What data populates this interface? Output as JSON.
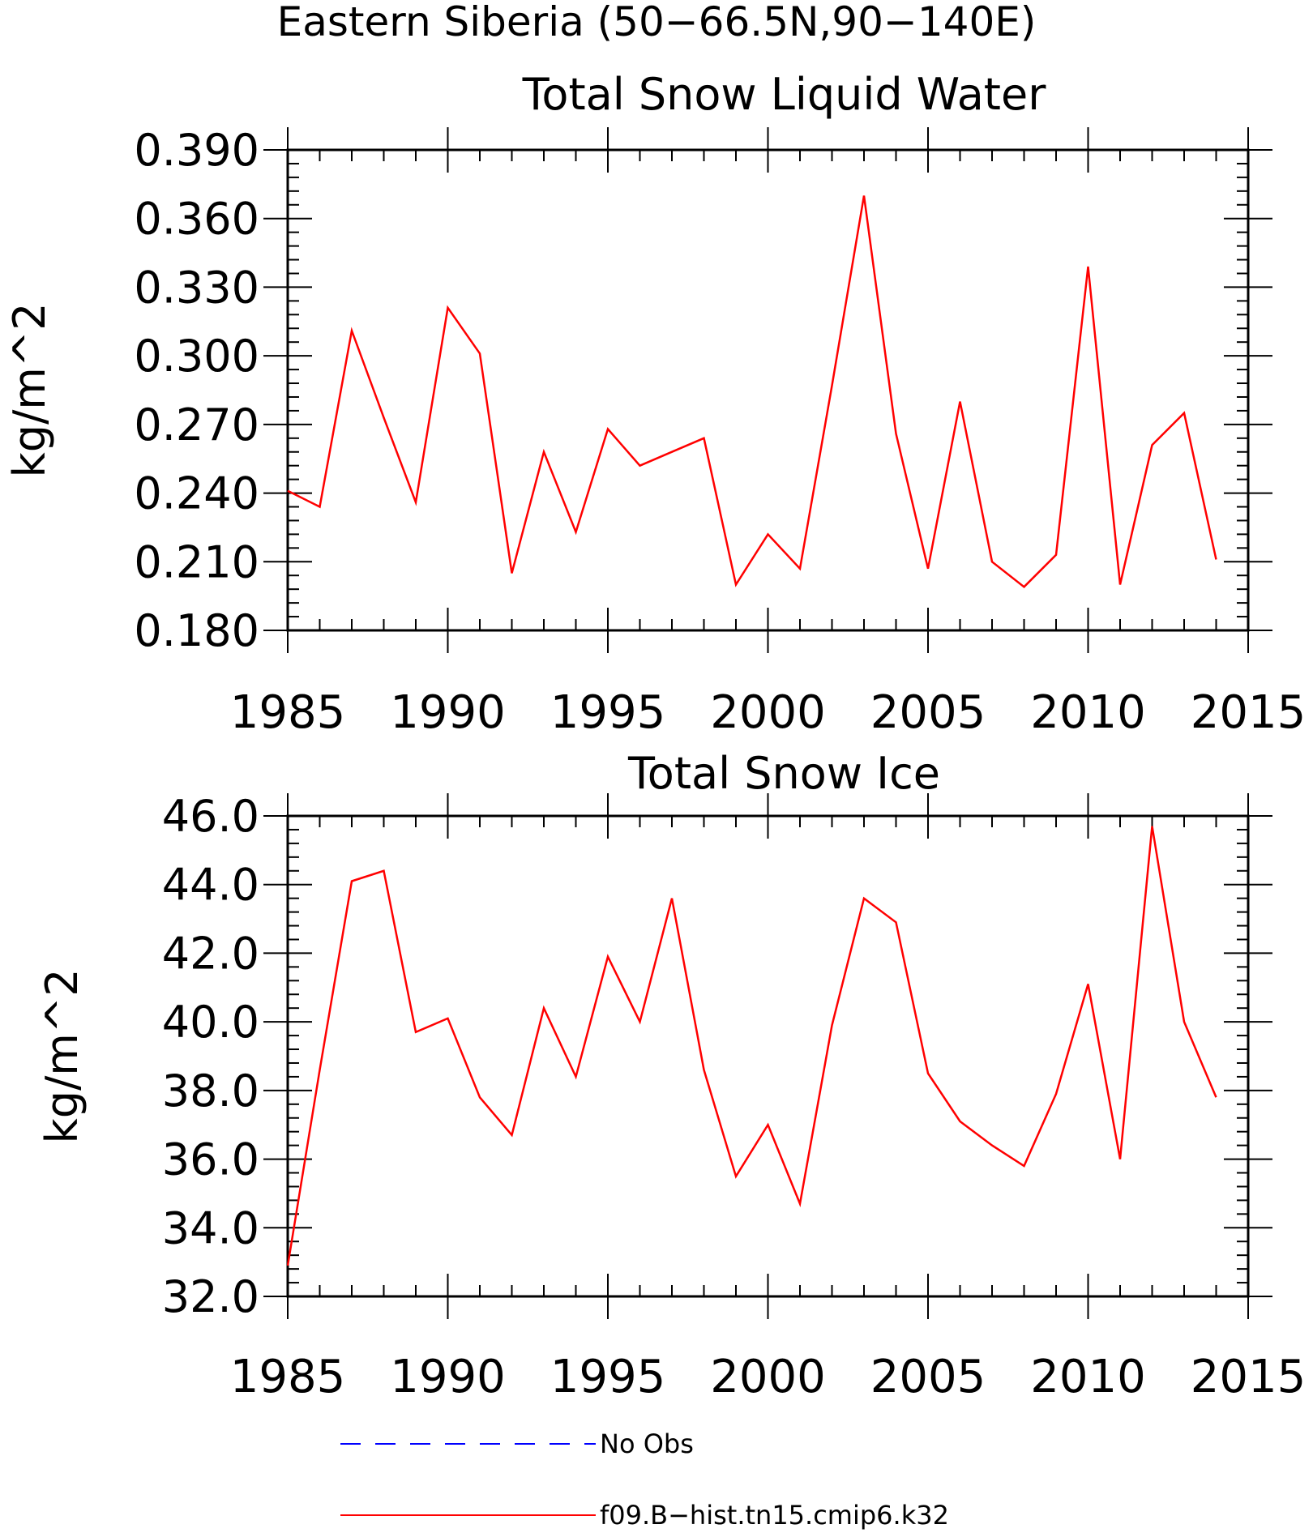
{
  "figure": {
    "title": "Eastern Siberia (50−66.5N,90−140E)"
  },
  "chart_data": [
    {
      "type": "line",
      "title": "Total Snow Liquid Water",
      "xlabel": "",
      "ylabel": "kg/m^2",
      "xlim": [
        1985,
        2015
      ],
      "ylim": [
        0.18,
        0.39
      ],
      "x_ticks": [
        "1985",
        "1990",
        "1995",
        "2000",
        "2005",
        "2010",
        "2015"
      ],
      "y_ticks": [
        "0.180",
        "0.210",
        "0.240",
        "0.270",
        "0.300",
        "0.330",
        "0.360",
        "0.390"
      ],
      "grid": false,
      "x": [
        1985,
        1986,
        1987,
        1988,
        1989,
        1990,
        1991,
        1992,
        1993,
        1994,
        1995,
        1996,
        1997,
        1998,
        1999,
        2000,
        2001,
        2002,
        2003,
        2004,
        2005,
        2006,
        2007,
        2008,
        2009,
        2010,
        2011,
        2012,
        2013,
        2014
      ],
      "series": [
        {
          "name": "f09.B−hist.tn15.cmip6.k32",
          "color": "#ff0000",
          "values": [
            0.241,
            0.234,
            0.311,
            0.273,
            0.236,
            0.321,
            0.301,
            0.205,
            0.258,
            0.223,
            0.268,
            0.252,
            0.258,
            0.264,
            0.2,
            0.222,
            0.207,
            0.287,
            0.37,
            0.266,
            0.207,
            0.28,
            0.21,
            0.199,
            0.213,
            0.339,
            0.2,
            0.261,
            0.275,
            0.211
          ]
        }
      ]
    },
    {
      "type": "line",
      "title": "Total Snow Ice",
      "xlabel": "",
      "ylabel": "kg/m^2",
      "xlim": [
        1985,
        2015
      ],
      "ylim": [
        32.0,
        46.0
      ],
      "x_ticks": [
        "1985",
        "1990",
        "1995",
        "2000",
        "2005",
        "2010",
        "2015"
      ],
      "y_ticks": [
        "32.0",
        "34.0",
        "36.0",
        "38.0",
        "40.0",
        "42.0",
        "44.0",
        "46.0"
      ],
      "grid": false,
      "x": [
        1985,
        1986,
        1987,
        1988,
        1989,
        1990,
        1991,
        1992,
        1993,
        1994,
        1995,
        1996,
        1997,
        1998,
        1999,
        2000,
        2001,
        2002,
        2003,
        2004,
        2005,
        2006,
        2007,
        2008,
        2009,
        2010,
        2011,
        2012,
        2013,
        2014
      ],
      "series": [
        {
          "name": "f09.B−hist.tn15.cmip6.k32",
          "color": "#ff0000",
          "values": [
            32.9,
            38.6,
            44.1,
            44.4,
            39.7,
            40.1,
            37.8,
            36.7,
            40.4,
            38.4,
            41.9,
            40.0,
            43.6,
            38.6,
            35.5,
            37.0,
            34.7,
            39.9,
            43.6,
            42.9,
            38.5,
            37.1,
            36.4,
            35.8,
            37.9,
            41.1,
            36.0,
            45.7,
            40.0,
            37.8
          ]
        }
      ]
    }
  ],
  "legend": {
    "placement": "bottom",
    "entries": [
      {
        "label": "No Obs",
        "color": "#0000ff",
        "dashed": true
      },
      {
        "label": "f09.B−hist.tn15.cmip6.k32",
        "color": "#ff0000",
        "dashed": false
      }
    ]
  }
}
